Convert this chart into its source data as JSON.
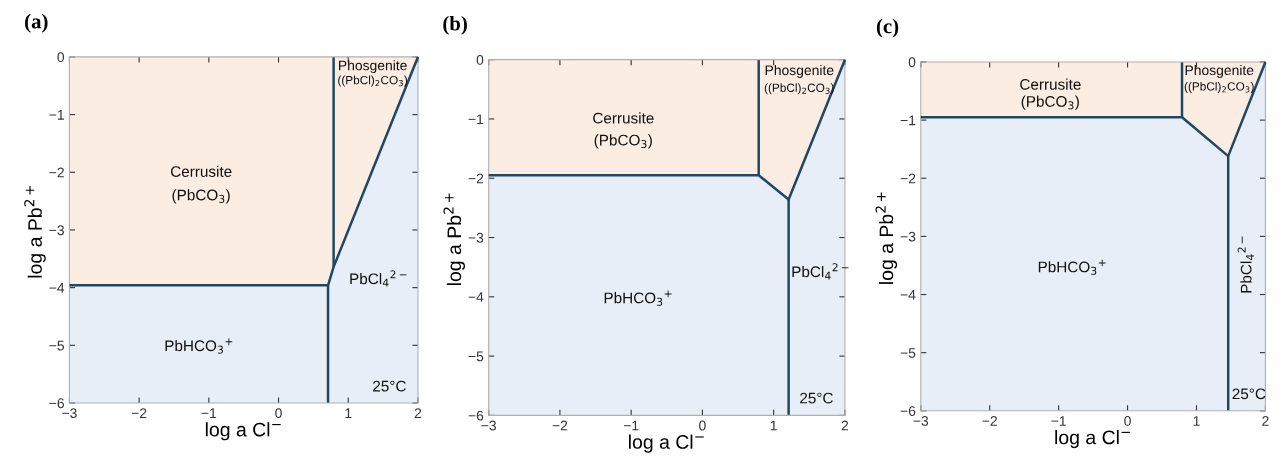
{
  "chart_data": [
    {
      "type": "line",
      "title": "(a)",
      "xlabel": "log a Cl$^{−}$",
      "ylabel": "log a Pb$^{2+}$",
      "xlim": [
        -3,
        2
      ],
      "ylim": [
        -6,
        0
      ],
      "xticks": [
        -3,
        -2,
        -1,
        0,
        1,
        2
      ],
      "yticks": [
        -6,
        -5,
        -4,
        -3,
        -2,
        -1,
        0
      ],
      "grid": false,
      "legend": false,
      "bands": [
        {
          "axis": "y",
          "from": -6,
          "to": 0,
          "color": "#e8eef7"
        }
      ],
      "series": [
        {
          "type": "area",
          "color": "#fcede3",
          "x": [
            -3,
            0.71,
            0.79,
            2
          ],
          "values": [
            -3.96,
            -3.96,
            -3.64,
            0
          ]
        },
        {
          "color": "#1f4766",
          "x": [
            0.71,
            0.71
          ],
          "values": [
            -3.96,
            -6
          ]
        },
        {
          "color": "#1f4766",
          "x": [
            0.79,
            0.79
          ],
          "values": [
            -3.64,
            0
          ]
        }
      ],
      "annotations": [
        "Cerrusite",
        "(PbCO$_{3}$)",
        "Phosgenite",
        "((PbCl)$_{2}$CO$_{3}$)",
        "PbCl$_{4}$$^{2−}$",
        "PbHCO$_{3}$$^{+}$",
        "25°C"
      ]
    },
    {
      "type": "line",
      "title": "(b)",
      "xlabel": "log a Cl$^{−}$",
      "ylabel": "log a Pb$^{2+}$",
      "xlim": [
        -3,
        2
      ],
      "ylim": [
        -6,
        0
      ],
      "xticks": [
        -3,
        -2,
        -1,
        0,
        1,
        2
      ],
      "yticks": [
        -6,
        -5,
        -4,
        -3,
        -2,
        -1,
        0
      ],
      "grid": false,
      "legend": false,
      "bands": [
        {
          "axis": "y",
          "from": -6,
          "to": 0,
          "color": "#e8eef7"
        }
      ],
      "series": [
        {
          "type": "area",
          "color": "#fcede3",
          "x": [
            -3,
            0.79,
            1.21,
            2
          ],
          "values": [
            -1.95,
            -1.95,
            -2.36,
            0
          ]
        },
        {
          "color": "#1f4766",
          "x": [
            0.79,
            0.79
          ],
          "values": [
            0,
            -1.95
          ]
        },
        {
          "color": "#1f4766",
          "x": [
            1.21,
            1.21
          ],
          "values": [
            -2.36,
            -6
          ]
        }
      ],
      "annotations": [
        "Cerrusite",
        "(PbCO$_{3}$)",
        "Phosgenite",
        "((PbCl)$_{2}$CO$_{3}$)",
        "PbCl$_{4}$$^{2−}$",
        "PbHCO$_{3}$$^{+}$",
        "25°C"
      ]
    },
    {
      "type": "line",
      "title": "(c)",
      "xlabel": "log a Cl$^{−}$",
      "ylabel": "log a Pb$^{2+}$",
      "xlim": [
        -3,
        2
      ],
      "ylim": [
        -6,
        0
      ],
      "xticks": [
        -3,
        -2,
        -1,
        0,
        1,
        2
      ],
      "yticks": [
        -6,
        -5,
        -4,
        -3,
        -2,
        -1,
        0
      ],
      "grid": false,
      "legend": false,
      "bands": [
        {
          "axis": "y",
          "from": -6,
          "to": 0,
          "color": "#e8eef7"
        }
      ],
      "series": [
        {
          "type": "area",
          "color": "#fcede3",
          "x": [
            -3,
            0.79,
            1.46,
            2
          ],
          "values": [
            -0.95,
            -0.95,
            -1.62,
            0
          ]
        },
        {
          "color": "#1f4766",
          "x": [
            0.79,
            0.79
          ],
          "values": [
            0,
            -0.95
          ]
        },
        {
          "color": "#1f4766",
          "x": [
            1.46,
            1.46
          ],
          "values": [
            -1.62,
            -6
          ]
        }
      ],
      "annotations": [
        "Cerrusite",
        "(PbCO$_{3}$)",
        "Phosgenite",
        "((PbCl)$_{2}$CO$_{3}$)",
        "PbCl$_{4}$$^{2−}$",
        "PbHCO$_{3}$$^{+}$",
        "25°C"
      ]
    }
  ]
}
